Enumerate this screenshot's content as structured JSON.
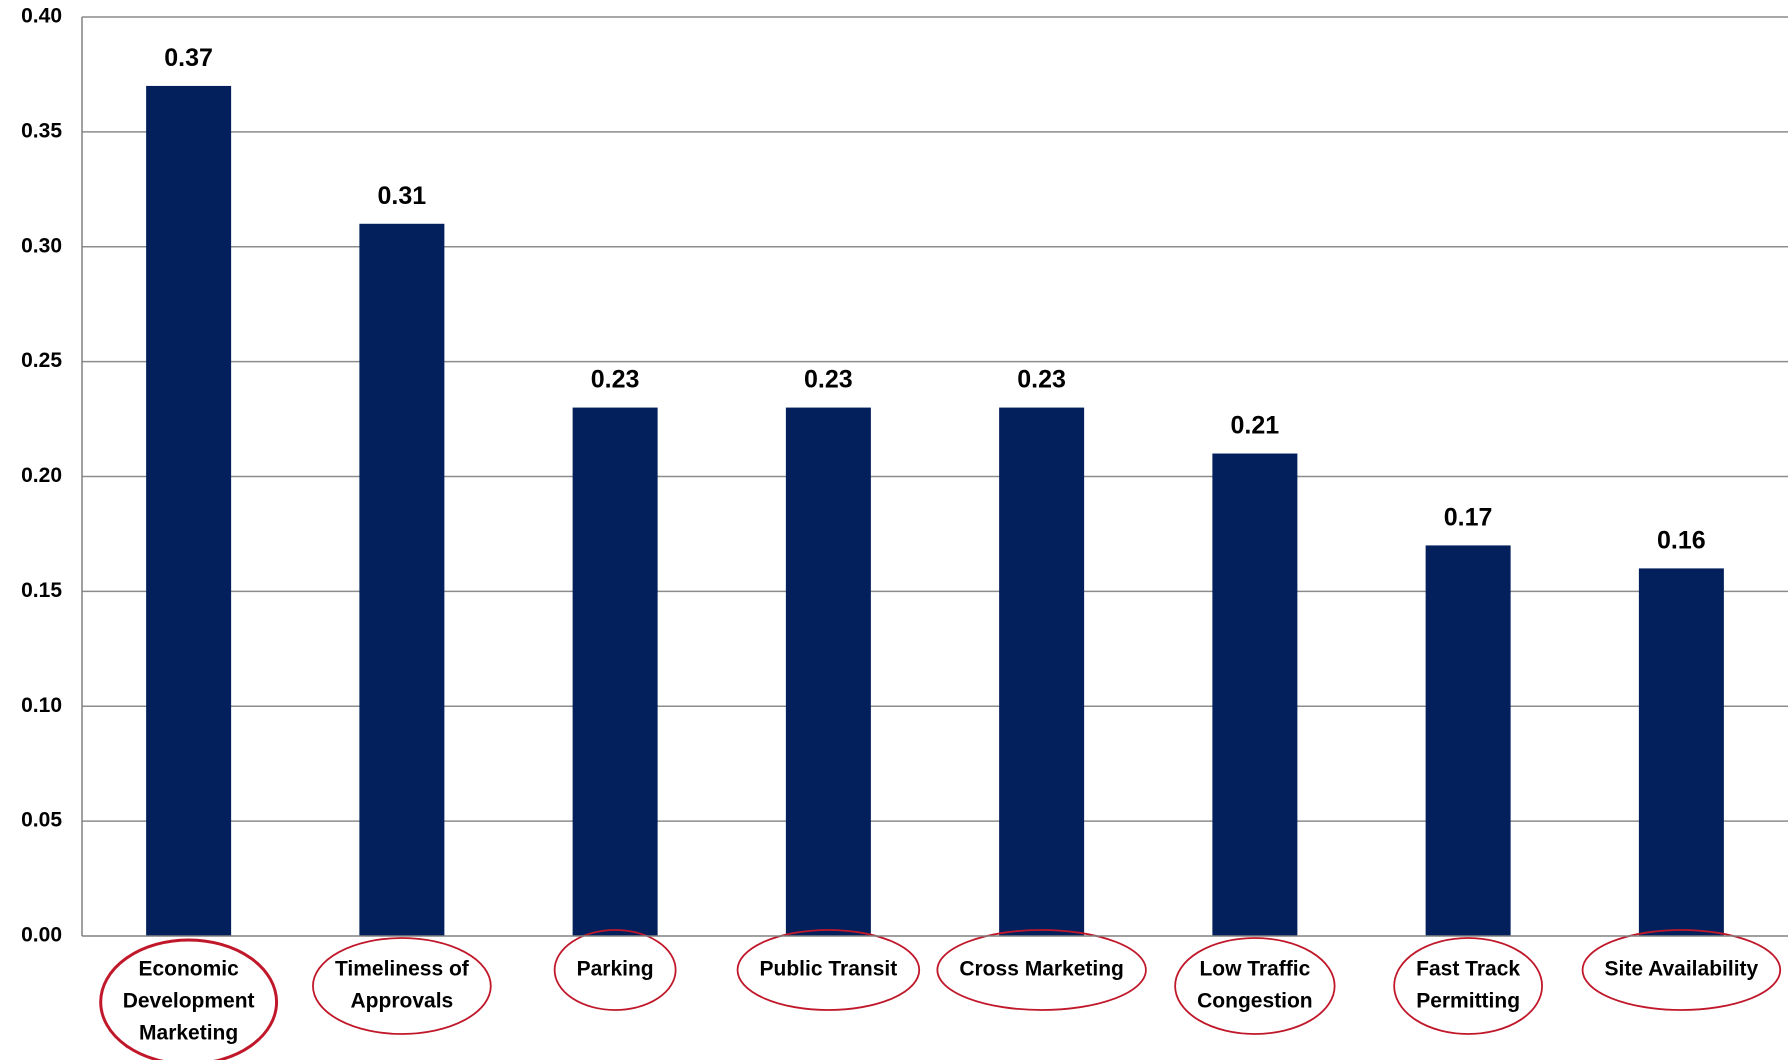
{
  "chart_data": {
    "type": "bar",
    "categories": [
      "Economic Development Marketing",
      "Timeliness of Approvals",
      "Parking",
      "Public Transit",
      "Cross Marketing",
      "Low Traffic Congestion",
      "Fast Track Permitting",
      "Site Availability"
    ],
    "category_lines": [
      [
        "Economic",
        "Development",
        "Marketing"
      ],
      [
        "Timeliness of",
        "Approvals"
      ],
      [
        "Parking"
      ],
      [
        "Public Transit"
      ],
      [
        "Cross Marketing"
      ],
      [
        "Low Traffic",
        "Congestion"
      ],
      [
        "Fast Track",
        "Permitting"
      ],
      [
        "Site Availability"
      ]
    ],
    "values": [
      0.37,
      0.31,
      0.23,
      0.23,
      0.23,
      0.21,
      0.17,
      0.16
    ],
    "value_labels": [
      "0.37",
      "0.31",
      "0.23",
      "0.23",
      "0.23",
      "0.21",
      "0.17",
      "0.16"
    ],
    "yticks": [
      "0.00",
      "0.05",
      "0.10",
      "0.15",
      "0.20",
      "0.25",
      "0.30",
      "0.35",
      "0.40"
    ],
    "ylim": [
      0,
      0.4
    ],
    "grid": true,
    "legend": "none",
    "category_label_highlight": "circled",
    "colors": {
      "bar": "#03205C",
      "gridline": "#8C8C8C",
      "axis": "#808080",
      "label_circle": "#C0182A"
    }
  }
}
